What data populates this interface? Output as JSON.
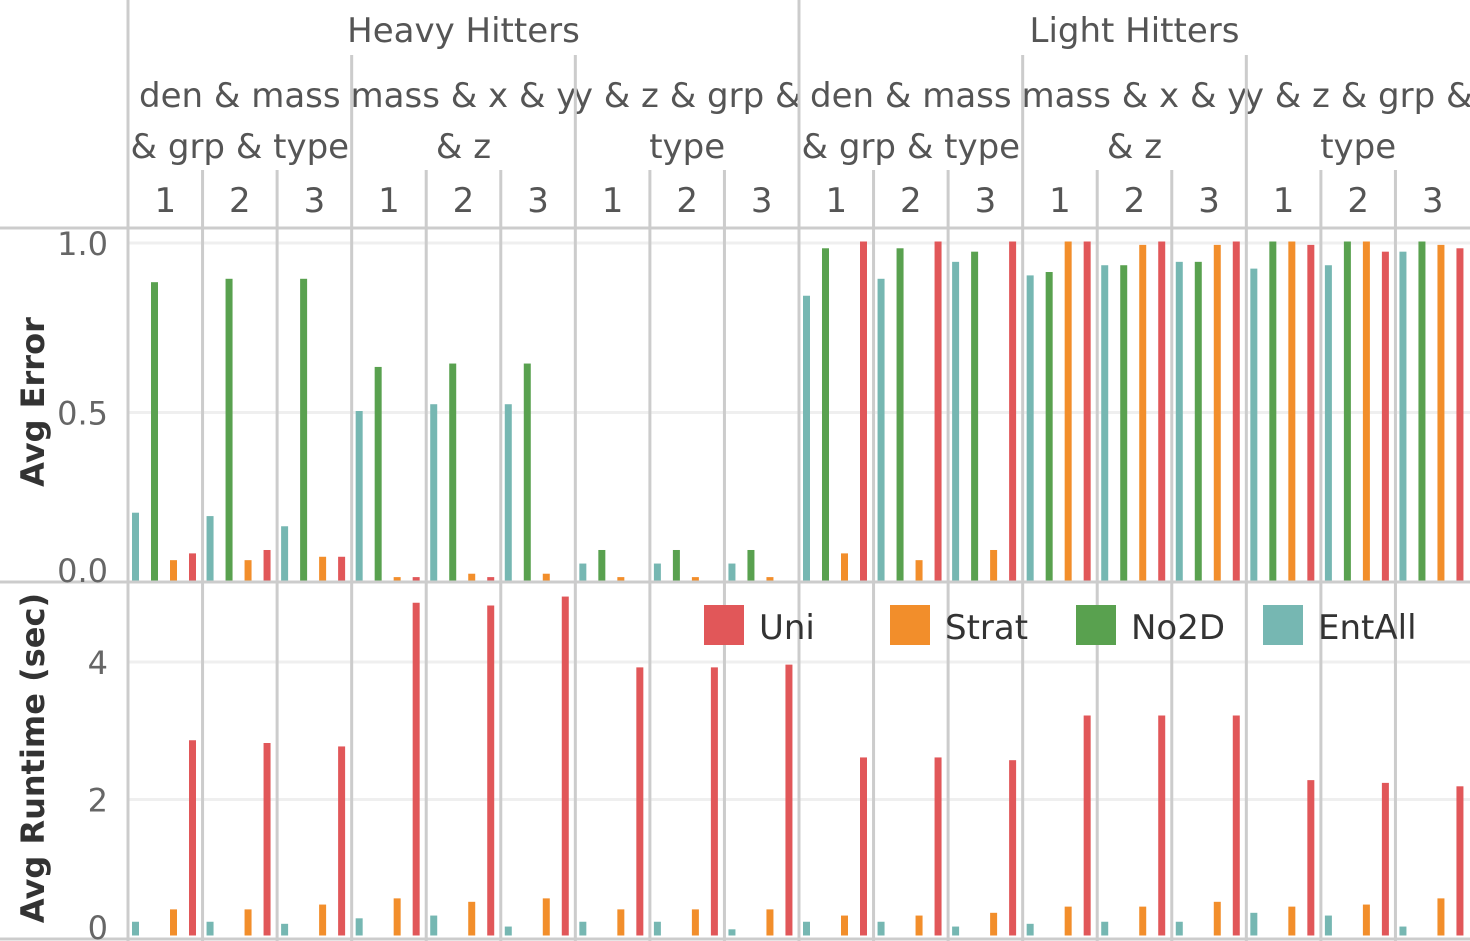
{
  "chart_data": [
    {
      "type": "bar",
      "ylabel": "Avg Error",
      "ylim": [
        0,
        1.05
      ],
      "yticks": [
        "0.0",
        "0.5",
        "1.0"
      ],
      "grid": true,
      "groups": [
        "Heavy Hitters",
        "Light Hitters"
      ],
      "subgroups": [
        [
          "den & mass",
          "& grp & type"
        ],
        [
          "mass & x & y",
          "& z"
        ],
        [
          "y & z & grp &",
          "type"
        ]
      ],
      "runs": [
        "1",
        "2",
        "3"
      ],
      "series": [
        {
          "name": "EntAll",
          "values": [
            0.2,
            0.19,
            0.16,
            0.5,
            0.52,
            0.52,
            0.05,
            0.05,
            0.05,
            0.84,
            0.89,
            0.94,
            0.9,
            0.93,
            0.94,
            0.92,
            0.93,
            0.97
          ]
        },
        {
          "name": "No2D",
          "values": [
            0.88,
            0.89,
            0.89,
            0.63,
            0.64,
            0.64,
            0.09,
            0.09,
            0.09,
            0.98,
            0.98,
            0.97,
            0.91,
            0.93,
            0.94,
            1.0,
            1.0,
            1.0
          ]
        },
        {
          "name": "Strat",
          "values": [
            0.06,
            0.06,
            0.07,
            0.01,
            0.02,
            0.02,
            0.01,
            0.01,
            0.01,
            0.08,
            0.06,
            0.09,
            1.0,
            0.99,
            0.99,
            1.0,
            1.0,
            0.99
          ]
        },
        {
          "name": "Uni",
          "values": [
            0.08,
            0.09,
            0.07,
            0.01,
            0.01,
            0.0,
            0.0,
            0.0,
            0.0,
            1.0,
            1.0,
            1.0,
            1.0,
            1.0,
            1.0,
            0.99,
            0.97,
            0.98
          ]
        }
      ]
    },
    {
      "type": "bar",
      "ylabel": "Avg Runtime (sec)",
      "ylim": [
        0,
        5.2
      ],
      "yticks": [
        "0",
        "2",
        "4"
      ],
      "grid": true,
      "series": [
        {
          "name": "EntAll",
          "values": [
            0.2,
            0.2,
            0.17,
            0.25,
            0.29,
            0.13,
            0.2,
            0.2,
            0.09,
            0.2,
            0.2,
            0.13,
            0.17,
            0.2,
            0.2,
            0.33,
            0.29,
            0.13
          ]
        },
        {
          "name": "No2D",
          "values": [
            0,
            0,
            0,
            0,
            0,
            0,
            0,
            0,
            0,
            0,
            0,
            0,
            0,
            0,
            0,
            0,
            0,
            0
          ]
        },
        {
          "name": "Strat",
          "values": [
            0.38,
            0.38,
            0.45,
            0.54,
            0.49,
            0.54,
            0.38,
            0.38,
            0.38,
            0.29,
            0.29,
            0.33,
            0.42,
            0.42,
            0.49,
            0.42,
            0.45,
            0.54
          ]
        },
        {
          "name": "Uni",
          "values": [
            2.84,
            2.8,
            2.75,
            4.84,
            4.8,
            4.93,
            3.9,
            3.9,
            3.94,
            2.59,
            2.59,
            2.55,
            3.2,
            3.2,
            3.2,
            2.26,
            2.22,
            2.17
          ]
        }
      ]
    }
  ],
  "legend": {
    "placement": "top-right of lower panel",
    "items": [
      {
        "name": "Uni",
        "color": "#e15759"
      },
      {
        "name": "Strat",
        "color": "#f28e2b"
      },
      {
        "name": "No2D",
        "color": "#59a14f"
      },
      {
        "name": "EntAll",
        "color": "#76b7b2"
      }
    ]
  },
  "colors": {
    "EntAll": "#76b7b2",
    "No2D": "#59a14f",
    "Strat": "#f28e2b",
    "Uni": "#e15759"
  }
}
